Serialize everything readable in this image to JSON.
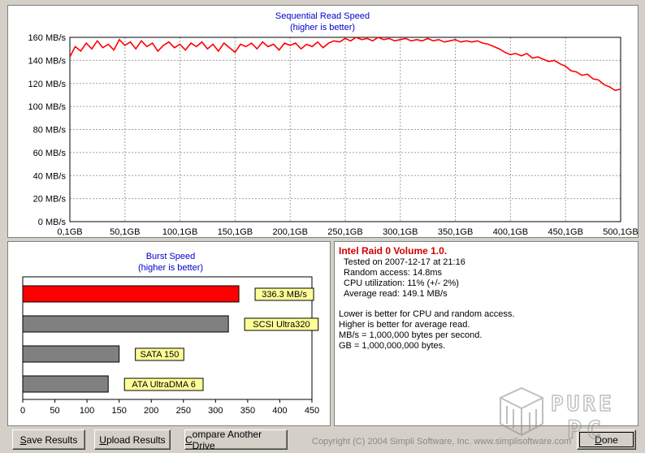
{
  "sequential": {
    "title": "Sequential Read Speed",
    "subtitle": "(higher is better)"
  },
  "burst": {
    "title": "Burst Speed",
    "subtitle": "(higher is better)"
  },
  "info": {
    "title": "Intel Raid 0 Volume 1.0.",
    "tested": "Tested on 2007-12-17 at 21:16",
    "random_access": "Random access: 14.8ms",
    "cpu": "CPU utilization: 11% (+/- 2%)",
    "average_read": "Average read: 149.1 MB/s",
    "note1": "Lower is better for CPU and random access.",
    "note2": "Higher is better for average read.",
    "note3": "MB/s = 1,000,000 bytes per second.",
    "note4": "GB = 1,000,000,000 bytes."
  },
  "buttons": {
    "save": "Save Results",
    "save_hotkey": "S",
    "save_rest": "ave Results",
    "upload": "Upload Results",
    "upload_hotkey": "U",
    "upload_rest": "pload Results",
    "compare": "Compare Another Drive",
    "compare_hotkey": "C",
    "compare_rest": "ompare Another Drive",
    "done": "Done",
    "done_hotkey": "D",
    "done_rest": "one"
  },
  "footer": {
    "copyright": "Copyright (C) 2004 Simpli Software, Inc. www.simplisoftware.com"
  },
  "logo": {
    "text": "PURE PC",
    "icon": "cube-logo-icon"
  },
  "colors": {
    "line": "#ff0000",
    "highlight_bar": "#ff0000",
    "other_bar": "#808080",
    "label_bg": "#ffff99",
    "title": "#0000cc",
    "info_title": "#d00000"
  },
  "chart_data": [
    {
      "type": "line",
      "title": "Sequential Read Speed",
      "subtitle": "(higher is better)",
      "x_ticks": [
        "0,1GB",
        "50,1GB",
        "100,1GB",
        "150,1GB",
        "200,1GB",
        "250,1GB",
        "300,1GB",
        "350,1GB",
        "400,1GB",
        "450,1GB",
        "500,1GB"
      ],
      "y_ticks": [
        "0 MB/s",
        "20 MB/s",
        "40 MB/s",
        "60 MB/s",
        "80 MB/s",
        "100 MB/s",
        "120 MB/s",
        "140 MB/s",
        "160 MB/s"
      ],
      "xlim": [
        0.1,
        500.1
      ],
      "ylim": [
        0,
        160
      ],
      "grid": true,
      "series": [
        {
          "x": [
            0.1,
            5,
            10,
            15,
            20,
            25,
            30,
            35,
            40,
            45,
            50,
            55,
            60,
            65,
            70,
            75,
            80,
            85,
            90,
            95,
            100,
            105,
            110,
            115,
            120,
            125,
            130,
            135,
            140,
            145,
            150,
            155,
            160,
            165,
            170,
            175,
            180,
            185,
            190,
            195,
            200,
            205,
            210,
            215,
            220,
            225,
            230,
            235,
            240,
            245,
            250,
            255,
            260,
            265,
            270,
            275,
            280,
            285,
            290,
            295,
            300,
            305,
            310,
            315,
            320,
            325,
            330,
            335,
            340,
            345,
            350,
            355,
            360,
            365,
            370,
            375,
            380,
            385,
            390,
            395,
            400,
            405,
            410,
            415,
            420,
            425,
            430,
            435,
            440,
            445,
            450,
            455,
            460,
            465,
            470,
            475,
            480,
            485,
            490,
            495,
            500.1
          ],
          "y": [
            143,
            152,
            148,
            155,
            150,
            157,
            151,
            154,
            149,
            158,
            153,
            156,
            150,
            157,
            152,
            155,
            148,
            153,
            156,
            151,
            154,
            149,
            155,
            152,
            156,
            150,
            154,
            148,
            155,
            151,
            147,
            154,
            152,
            155,
            150,
            156,
            152,
            154,
            149,
            155,
            153,
            155,
            150,
            154,
            152,
            156,
            151,
            155,
            157,
            156,
            159,
            157,
            160,
            158,
            159,
            157,
            160,
            158,
            159,
            157,
            158,
            159,
            157,
            158,
            157,
            159,
            157,
            158,
            156,
            157,
            158,
            156,
            157,
            156,
            157,
            155,
            154,
            152,
            150,
            147,
            145,
            146,
            144,
            146,
            142,
            143,
            141,
            139,
            140,
            137,
            135,
            131,
            130,
            127,
            128,
            124,
            123,
            119,
            117,
            114,
            115
          ]
        }
      ]
    },
    {
      "type": "bar",
      "orientation": "horizontal",
      "title": "Burst Speed",
      "subtitle": "(higher is better)",
      "categories": [
        "336.3 MB/s",
        "SCSI Ultra320",
        "SATA 150",
        "ATA UltraDMA 6"
      ],
      "values": [
        336.3,
        320,
        150,
        133
      ],
      "highlight": [
        true,
        false,
        false,
        false
      ],
      "x_ticks": [
        "0",
        "50",
        "100",
        "150",
        "200",
        "250",
        "300",
        "350",
        "400",
        "450"
      ],
      "xlim": [
        0,
        450
      ],
      "grid": false
    }
  ]
}
